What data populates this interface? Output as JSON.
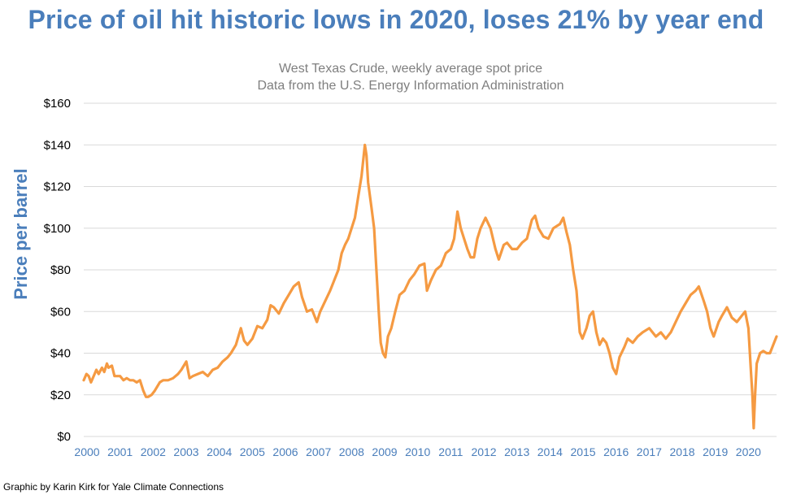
{
  "header": {
    "title": "Price of oil hit historic lows in 2020, loses 21% by year end",
    "subtitle_line1": "West Texas Crude, weekly average spot price",
    "subtitle_line2": "Data from the U.S. Energy Information Administration"
  },
  "footer": {
    "credit": "Graphic by Karin Kirk for Yale Climate Connections"
  },
  "colors": {
    "title": "#4a7ebb",
    "line": "#f59a42",
    "grid": "#d9d9d9",
    "subtitle": "#7f7f7f",
    "xticks": "#4a7ebb"
  },
  "chart_data": {
    "type": "line",
    "title": "Price of oil hit historic lows in 2020, loses 21% by year end",
    "subtitle": "West Texas Crude, weekly average spot price",
    "source": "Data from the U.S. Energy Information Administration",
    "ylabel": "Price per barrel",
    "xlabel": "",
    "ylim": [
      0,
      160
    ],
    "xlim": [
      2000,
      2020.95
    ],
    "grid": "horizontal",
    "yticks": [
      "$0",
      "$20",
      "$40",
      "$60",
      "$80",
      "$100",
      "$120",
      "$140",
      "$160"
    ],
    "ytick_values": [
      0,
      20,
      40,
      60,
      80,
      100,
      120,
      140,
      160
    ],
    "xticks": [
      "2000",
      "2001",
      "2002",
      "2003",
      "2004",
      "2005",
      "2006",
      "2007",
      "2008",
      "2009",
      "2010",
      "2011",
      "2012",
      "2013",
      "2014",
      "2015",
      "2016",
      "2017",
      "2018",
      "2019",
      "2020"
    ],
    "series": [
      {
        "name": "West Texas Crude, weekly average spot price",
        "x": [
          2000.0,
          2000.08,
          2000.15,
          2000.22,
          2000.3,
          2000.38,
          2000.45,
          2000.55,
          2000.62,
          2000.7,
          2000.75,
          2000.85,
          2000.93,
          2001.0,
          2001.1,
          2001.2,
          2001.3,
          2001.4,
          2001.5,
          2001.6,
          2001.7,
          2001.8,
          2001.88,
          2001.95,
          2002.05,
          2002.15,
          2002.3,
          2002.4,
          2002.55,
          2002.7,
          2002.85,
          2002.95,
          2003.1,
          2003.2,
          2003.3,
          2003.45,
          2003.6,
          2003.75,
          2003.9,
          2004.05,
          2004.2,
          2004.35,
          2004.45,
          2004.6,
          2004.75,
          2004.85,
          2004.95,
          2005.1,
          2005.25,
          2005.4,
          2005.55,
          2005.65,
          2005.75,
          2005.9,
          2006.05,
          2006.2,
          2006.35,
          2006.5,
          2006.6,
          2006.75,
          2006.9,
          2007.05,
          2007.15,
          2007.3,
          2007.45,
          2007.55,
          2007.7,
          2007.8,
          2007.9,
          2008.0,
          2008.1,
          2008.2,
          2008.3,
          2008.4,
          2008.5,
          2008.55,
          2008.6,
          2008.7,
          2008.78,
          2008.85,
          2008.92,
          2008.98,
          2009.05,
          2009.12,
          2009.2,
          2009.3,
          2009.42,
          2009.55,
          2009.7,
          2009.85,
          2010.0,
          2010.15,
          2010.3,
          2010.38,
          2010.5,
          2010.65,
          2010.8,
          2010.95,
          2011.1,
          2011.2,
          2011.3,
          2011.4,
          2011.5,
          2011.6,
          2011.7,
          2011.8,
          2011.9,
          2012.0,
          2012.15,
          2012.3,
          2012.45,
          2012.55,
          2012.7,
          2012.8,
          2012.95,
          2013.1,
          2013.25,
          2013.4,
          2013.55,
          2013.65,
          2013.75,
          2013.9,
          2014.05,
          2014.2,
          2014.4,
          2014.5,
          2014.6,
          2014.7,
          2014.8,
          2014.9,
          2015.0,
          2015.08,
          2015.2,
          2015.3,
          2015.4,
          2015.5,
          2015.6,
          2015.7,
          2015.8,
          2015.9,
          2016.0,
          2016.1,
          2016.2,
          2016.35,
          2016.45,
          2016.6,
          2016.75,
          2016.9,
          2017.1,
          2017.3,
          2017.45,
          2017.6,
          2017.75,
          2017.9,
          2018.05,
          2018.2,
          2018.35,
          2018.5,
          2018.6,
          2018.75,
          2018.85,
          2018.95,
          2019.05,
          2019.2,
          2019.3,
          2019.45,
          2019.6,
          2019.75,
          2019.9,
          2020.0,
          2020.1,
          2020.18,
          2020.22,
          2020.26,
          2020.3,
          2020.35,
          2020.45,
          2020.55,
          2020.65,
          2020.75,
          2020.85,
          2020.95
        ],
        "values": [
          27,
          30,
          29,
          26,
          29,
          32,
          30,
          33,
          31,
          35,
          33,
          34,
          29,
          29,
          29,
          27,
          28,
          27,
          27,
          26,
          27,
          22,
          19,
          19,
          20,
          22,
          26,
          27,
          27,
          28,
          30,
          32,
          36,
          28,
          29,
          30,
          31,
          29,
          32,
          33,
          36,
          38,
          40,
          44,
          52,
          46,
          44,
          47,
          53,
          52,
          56,
          63,
          62,
          59,
          64,
          68,
          72,
          74,
          67,
          60,
          61,
          55,
          60,
          65,
          70,
          74,
          80,
          88,
          92,
          95,
          100,
          105,
          115,
          125,
          140,
          135,
          122,
          110,
          100,
          80,
          60,
          45,
          40,
          38,
          48,
          52,
          60,
          68,
          70,
          75,
          78,
          82,
          83,
          70,
          75,
          80,
          82,
          88,
          90,
          95,
          108,
          100,
          95,
          90,
          86,
          86,
          95,
          100,
          105,
          100,
          90,
          85,
          92,
          93,
          90,
          90,
          93,
          95,
          104,
          106,
          100,
          96,
          95,
          100,
          102,
          105,
          98,
          92,
          80,
          70,
          50,
          47,
          52,
          58,
          60,
          50,
          44,
          47,
          45,
          40,
          33,
          30,
          38,
          43,
          47,
          45,
          48,
          50,
          52,
          48,
          50,
          47,
          50,
          55,
          60,
          64,
          68,
          70,
          72,
          65,
          60,
          52,
          48,
          55,
          58,
          62,
          57,
          55,
          58,
          60,
          52,
          30,
          20,
          4,
          20,
          35,
          40,
          41,
          40,
          40,
          44,
          48
        ],
        "color": "#f59a42"
      }
    ]
  }
}
